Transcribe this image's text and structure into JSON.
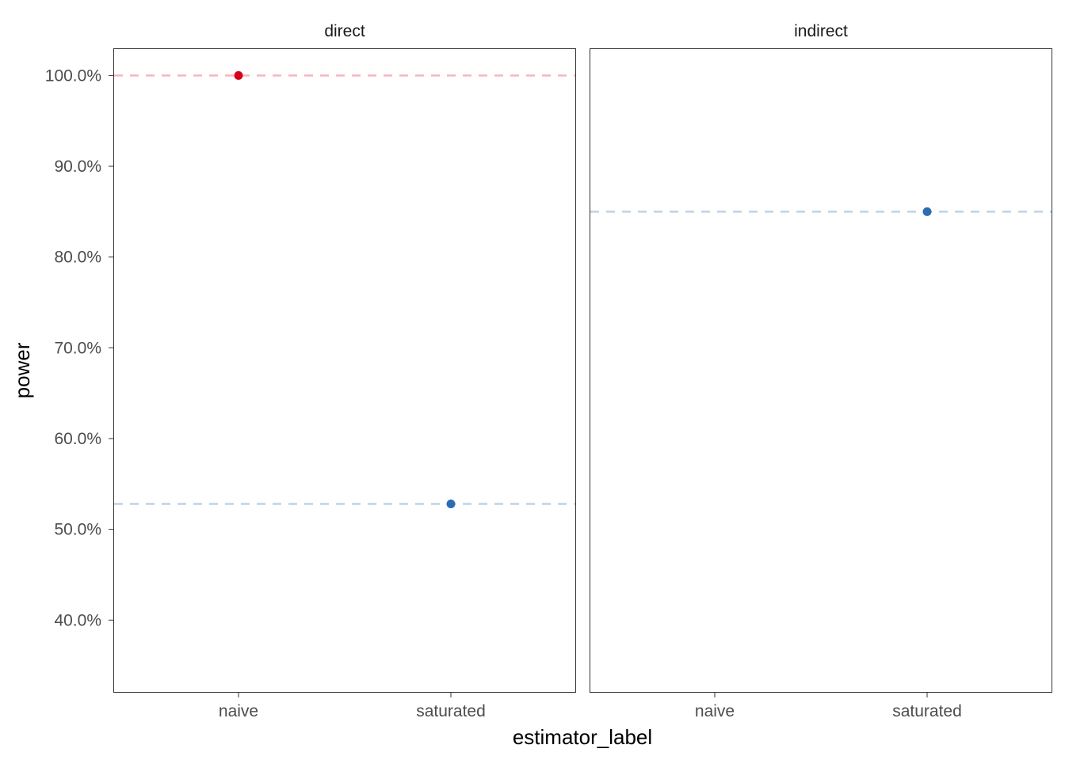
{
  "chart_data": {
    "type": "scatter",
    "xlabel": "estimator_label",
    "ylabel": "power",
    "categories": [
      "naive",
      "saturated"
    ],
    "ylim": [
      0.32,
      1.03
    ],
    "yticks": [
      0.4,
      0.5,
      0.6,
      0.7,
      0.8,
      0.9,
      1.0
    ],
    "ytick_labels": [
      "40.0%",
      "50.0%",
      "60.0%",
      "70.0%",
      "80.0%",
      "90.0%",
      "100.0%"
    ],
    "grid": false,
    "legend": "none",
    "colors": {
      "naive": "#d7001a",
      "saturated": "#2c6db2",
      "naive_line": "#f4b6bd",
      "saturated_line": "#bcd3ea"
    },
    "panels": [
      {
        "strip": "direct",
        "points": [
          {
            "x": "naive",
            "y": 1.0
          },
          {
            "x": "saturated",
            "y": 0.528
          }
        ],
        "hlines": [
          {
            "y": 1.0,
            "series": "naive"
          },
          {
            "y": 0.528,
            "series": "saturated"
          }
        ]
      },
      {
        "strip": "indirect",
        "points": [
          {
            "x": "saturated",
            "y": 0.85
          }
        ],
        "hlines": [
          {
            "y": 0.85,
            "series": "saturated"
          }
        ]
      }
    ]
  }
}
